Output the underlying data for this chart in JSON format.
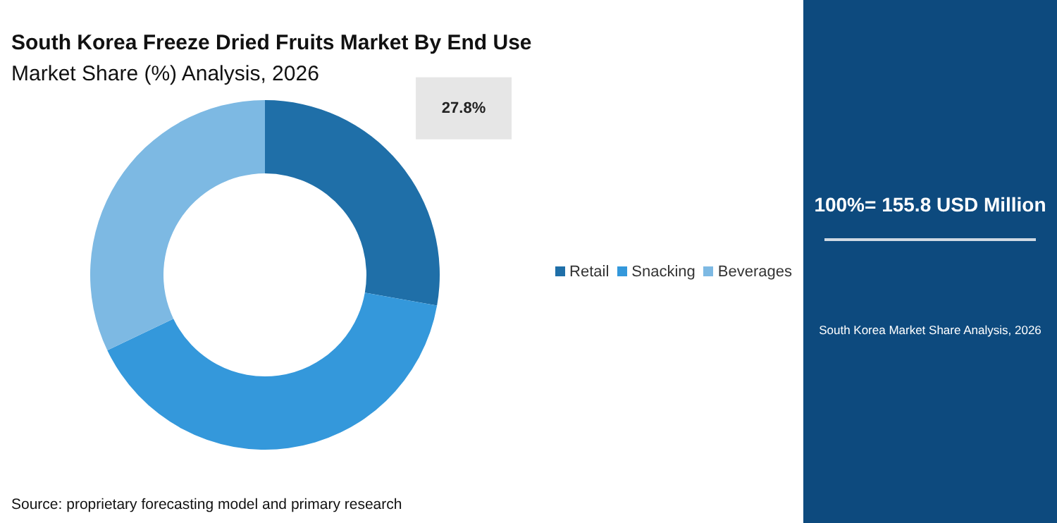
{
  "chart_data": {
    "type": "donut",
    "title": "South Korea Freeze Dried Fruits Market By End Use",
    "subtitle": "Market Share (%) Analysis, 2026",
    "categories": [
      "Retail",
      "Snacking",
      "Beverages"
    ],
    "values": [
      27.8,
      40.1,
      32.1
    ],
    "colors": [
      "#1f6fa8",
      "#3498db",
      "#7db9e3"
    ],
    "value_labels": [
      "27.8%",
      null,
      null
    ],
    "legend": "right",
    "annotations": [
      "100%= 155.8 USD Million",
      "South Korea Market Share Analysis, 2026",
      "Source: proprietary forecasting model and primary research"
    ]
  }
}
